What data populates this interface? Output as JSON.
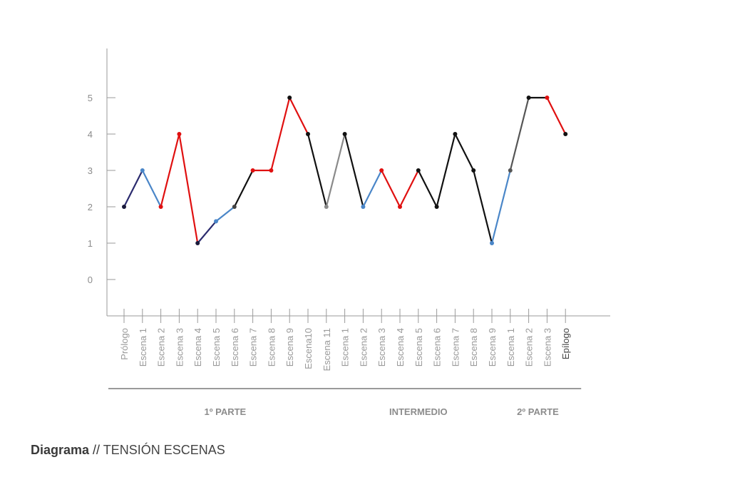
{
  "caption": {
    "title": "Diagrama",
    "separator": " // ",
    "subtitle": "TENSIÓN ESCENAS"
  },
  "chart_data": {
    "type": "line",
    "ylim": [
      0,
      5
    ],
    "y_ticks": [
      "0",
      "1",
      "2",
      "3",
      "4",
      "5"
    ],
    "categories": [
      "Prólogo",
      "Escena 1",
      "Escena 2",
      "Escena 3",
      "Escena 4",
      "Escena 5",
      "Escena 6",
      "Escena 7",
      "Escena 8",
      "Escena 9",
      "Escena10",
      "Escena 11",
      "Escena 1",
      "Escena 2",
      "Escena 3",
      "Escena 4",
      "Escena 5",
      "Escena 6",
      "Escena 7",
      "Escena 8",
      "Escena 9",
      "Escena 1",
      "Escena 2",
      "Escena 3",
      "Epílogo"
    ],
    "values": [
      2,
      3,
      2,
      4,
      1,
      1.6,
      2,
      3,
      3,
      5,
      4,
      2,
      4,
      2,
      3,
      2,
      3,
      2,
      4,
      3,
      1,
      3,
      5,
      5,
      4
    ],
    "segment_colors": [
      "#2b2b6e",
      "#4a86c8",
      "#e01010",
      "#e01010",
      "#2b2b6e",
      "#4a86c8",
      "#111111",
      "#e01010",
      "#e01010",
      "#e01010",
      "#111111",
      "#8a8a8a",
      "#111111",
      "#4a86c8",
      "#e01010",
      "#e01010",
      "#111111",
      "#111111",
      "#111111",
      "#111111",
      "#4a86c8",
      "#555555",
      "#111111",
      "#e01010"
    ],
    "point_colors": [
      "#1a1a3a",
      "#4a86c8",
      "#e01010",
      "#e01010",
      "#1a1a3a",
      "#4a86c8",
      "#444444",
      "#e01010",
      "#e01010",
      "#111111",
      "#111111",
      "#8a8a8a",
      "#111111",
      "#4a86c8",
      "#e01010",
      "#e01010",
      "#111111",
      "#111111",
      "#111111",
      "#111111",
      "#4a86c8",
      "#555555",
      "#111111",
      "#e01010",
      "#111111"
    ],
    "sections": [
      {
        "label": "1º PARTE",
        "start": 0,
        "end": 11
      },
      {
        "label": "INTERMEDIO",
        "start": 12,
        "end": 20
      },
      {
        "label": "2º PARTE",
        "start": 21,
        "end": 24
      }
    ],
    "grid": false,
    "legend": "none"
  }
}
